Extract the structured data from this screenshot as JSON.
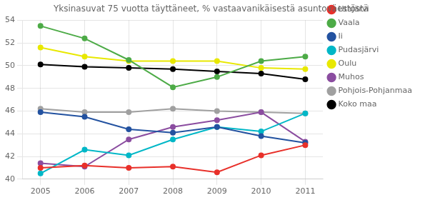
{
  "chart_data": {
    "type": "line",
    "title": "Yksinasuvat 75 vuotta täyttäneet, % vastaavanikäisestä asuntoväestöstä",
    "x": [
      2005,
      2006,
      2007,
      2008,
      2009,
      2010,
      2011
    ],
    "xlim": [
      2004.6,
      2011.4
    ],
    "xticks": [
      2005,
      2006,
      2007,
      2008,
      2009,
      2010,
      2011
    ],
    "ylim": [
      40,
      54
    ],
    "yticks": [
      40,
      42,
      44,
      46,
      48,
      50,
      52,
      54
    ],
    "grid": true,
    "legend": "right",
    "marker": "circle",
    "series": [
      {
        "name": "Utajärvi",
        "color": "#e8302a",
        "values": [
          41.0,
          41.2,
          41.0,
          41.1,
          40.6,
          42.1,
          43.0
        ]
      },
      {
        "name": "Vaala",
        "color": "#4dab47",
        "values": [
          53.5,
          52.4,
          50.5,
          48.1,
          49.0,
          50.4,
          50.8
        ]
      },
      {
        "name": "Ii",
        "color": "#2352a0",
        "values": [
          45.9,
          45.5,
          44.4,
          44.1,
          44.6,
          43.8,
          43.2
        ]
      },
      {
        "name": "Pudasjärvi",
        "color": "#00b7c7",
        "values": [
          40.5,
          42.6,
          42.1,
          43.5,
          44.6,
          44.2,
          45.8
        ]
      },
      {
        "name": "Oulu",
        "color": "#e8e800",
        "values": [
          51.6,
          50.8,
          50.4,
          50.4,
          50.4,
          49.8,
          49.7
        ]
      },
      {
        "name": "Muhos",
        "color": "#8b4da0",
        "values": [
          41.4,
          41.1,
          43.5,
          44.6,
          45.2,
          45.9,
          43.3
        ]
      },
      {
        "name": "Pohjois-Pohjanmaa",
        "color": "#a0a0a0",
        "values": [
          46.2,
          45.9,
          45.9,
          46.2,
          46.0,
          45.9,
          45.8
        ]
      },
      {
        "name": "Koko maa",
        "color": "#000000",
        "values": [
          50.1,
          49.9,
          49.8,
          49.7,
          49.5,
          49.3,
          48.8
        ]
      }
    ]
  }
}
